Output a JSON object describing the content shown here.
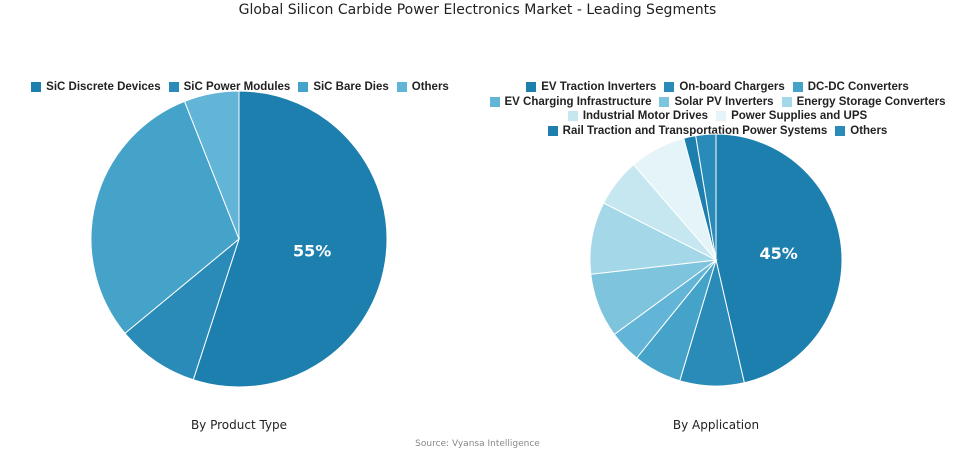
{
  "title": "Global Silicon Carbide Power Electronics Market - Leading Segments",
  "source": "Source: Vyansa Intelligence",
  "chart_data": [
    {
      "type": "pie",
      "subtitle": "By Product Type",
      "legend_position": "top",
      "categories": [
        "SiC Discrete Devices",
        "SiC Power Modules",
        "SiC Bare Dies",
        "Others"
      ],
      "values": [
        55,
        9,
        30,
        6
      ],
      "colors": [
        "#1c7fae",
        "#2a8bb8",
        "#45a3c9",
        "#62b5d6"
      ],
      "data_labels": [
        "55%",
        "",
        "",
        ""
      ]
    },
    {
      "type": "pie",
      "subtitle": "By Application",
      "legend_position": "top",
      "categories": [
        "EV Traction Inverters",
        "On-board Chargers",
        "DC-DC Converters",
        "EV Charging Infrastructure",
        "Solar PV Inverters",
        "Energy Storage Converters",
        "Industrial Motor Drives",
        "Power Supplies and UPS",
        "Rail Traction and Transportation Power Systems",
        "Others"
      ],
      "values": [
        45,
        8,
        6,
        4,
        8,
        9,
        6,
        7,
        1.5,
        2.5
      ],
      "colors": [
        "#1c7fae",
        "#2a8bb8",
        "#45a3c9",
        "#62b5d6",
        "#7fc4dd",
        "#a4d7e7",
        "#c6e7ef",
        "#e4f4f8",
        "#1c7fae",
        "#2a8bb8"
      ],
      "data_labels": [
        "45%",
        "",
        "",
        "",
        "",
        "",
        "",
        "",
        "",
        ""
      ]
    }
  ]
}
